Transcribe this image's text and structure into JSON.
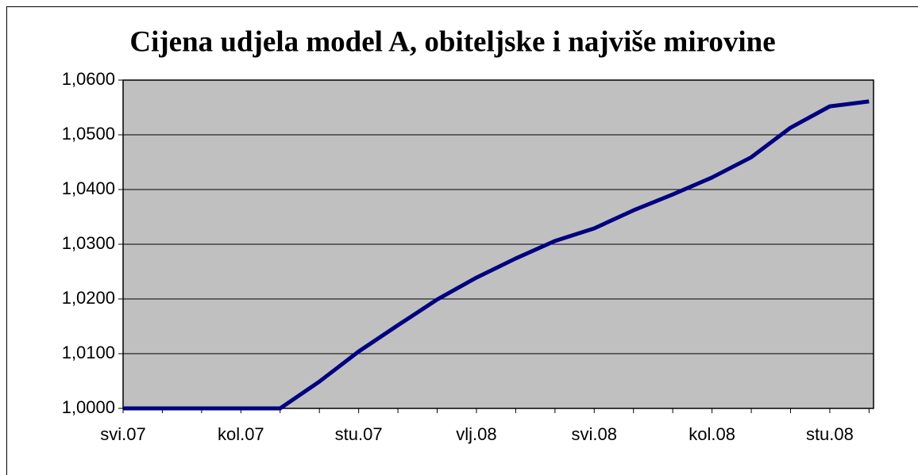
{
  "chart_data": {
    "type": "line",
    "title": "Cijena udjela model A, obiteljske i najviše mirovine",
    "categories": [
      "svi.07",
      null,
      null,
      "kol.07",
      null,
      null,
      "stu.07",
      null,
      null,
      "vlj.08",
      null,
      null,
      "svi.08",
      null,
      null,
      "kol.08",
      null,
      null,
      "stu.08",
      null
    ],
    "series": [
      {
        "name": "Cijena udjela",
        "color": "#000080",
        "values": [
          1.0,
          1.0,
          1.0,
          1.0,
          1.0,
          1.0049,
          1.0104,
          1.0152,
          1.0199,
          1.0239,
          1.0274,
          1.0306,
          1.0329,
          1.0362,
          1.0391,
          1.0422,
          1.0459,
          1.0513,
          1.0552,
          1.0561
        ]
      }
    ],
    "ylim": [
      1.0,
      1.06
    ],
    "yticks": [
      {
        "value": 1.0,
        "label": "1,0000"
      },
      {
        "value": 1.01,
        "label": "1,0100"
      },
      {
        "value": 1.02,
        "label": "1,0200"
      },
      {
        "value": 1.03,
        "label": "1,0300"
      },
      {
        "value": 1.04,
        "label": "1,0400"
      },
      {
        "value": 1.05,
        "label": "1,0500"
      },
      {
        "value": 1.06,
        "label": "1,0600"
      }
    ],
    "grid": true,
    "background": "#c0c0c0"
  }
}
